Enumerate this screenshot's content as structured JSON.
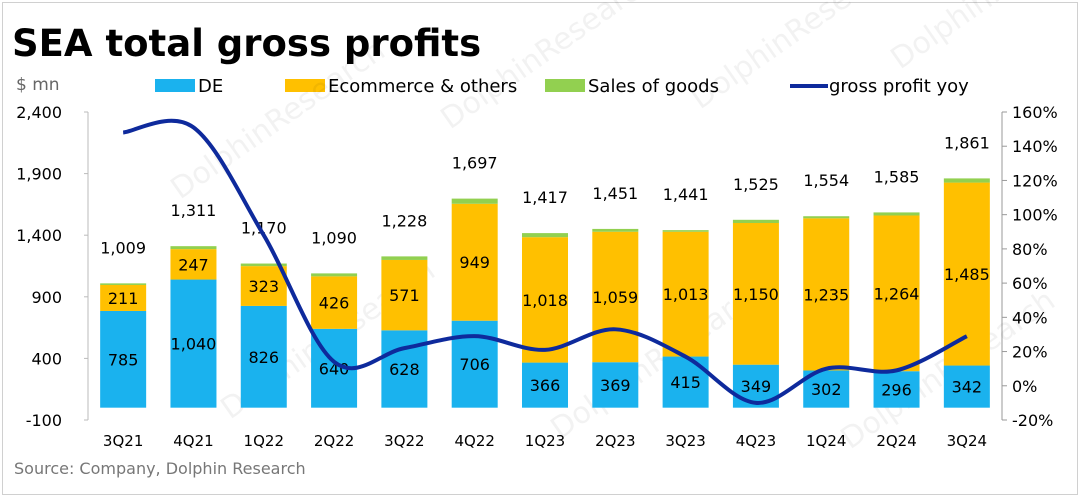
{
  "chart_data": {
    "type": "bar",
    "title": "SEA total gross profits",
    "ylabel": "$ mn",
    "source": "Source: Company, Dolphin Research",
    "categories": [
      "3Q21",
      "4Q21",
      "1Q22",
      "2Q22",
      "3Q22",
      "4Q22",
      "1Q23",
      "2Q23",
      "3Q23",
      "4Q23",
      "1Q24",
      "2Q24",
      "3Q24"
    ],
    "series": [
      {
        "name": "DE",
        "color": "#1ab2ee",
        "values": [
          785,
          1040,
          826,
          640,
          628,
          706,
          366,
          369,
          415,
          349,
          302,
          296,
          342
        ]
      },
      {
        "name": "Ecommerce & others",
        "color": "#ffc000",
        "values": [
          211,
          247,
          323,
          426,
          571,
          949,
          1018,
          1059,
          1013,
          1150,
          1235,
          1264,
          1485
        ]
      },
      {
        "name": "Sales of goods",
        "color": "#92d050",
        "values": [
          13,
          24,
          21,
          24,
          29,
          42,
          33,
          23,
          13,
          26,
          17,
          25,
          34
        ]
      }
    ],
    "totals": [
      "1,009",
      "1,311",
      "1,170",
      "1,090",
      "1,228",
      "1,697",
      "1,417",
      "1,451",
      "1,441",
      "1,525",
      "1,554",
      "1,585",
      "1,861"
    ],
    "line": {
      "name": "gross profit yoy",
      "color": "#0e2a9c",
      "axis": "right",
      "values": [
        148,
        151,
        88,
        14,
        22,
        29,
        21,
        33,
        17,
        -10,
        10,
        9,
        29
      ]
    },
    "ylim": [
      -100,
      2400
    ],
    "yticks": [
      "2,400",
      "1,900",
      "1,400",
      "900",
      "400",
      "-100"
    ],
    "y2lim": [
      -20,
      160
    ],
    "y2ticks": [
      "160%",
      "140%",
      "120%",
      "100%",
      "80%",
      "60%",
      "40%",
      "20%",
      "0%",
      "-20%"
    ],
    "legend": "top",
    "watermark": "Dolphin Research 海豚投研"
  }
}
